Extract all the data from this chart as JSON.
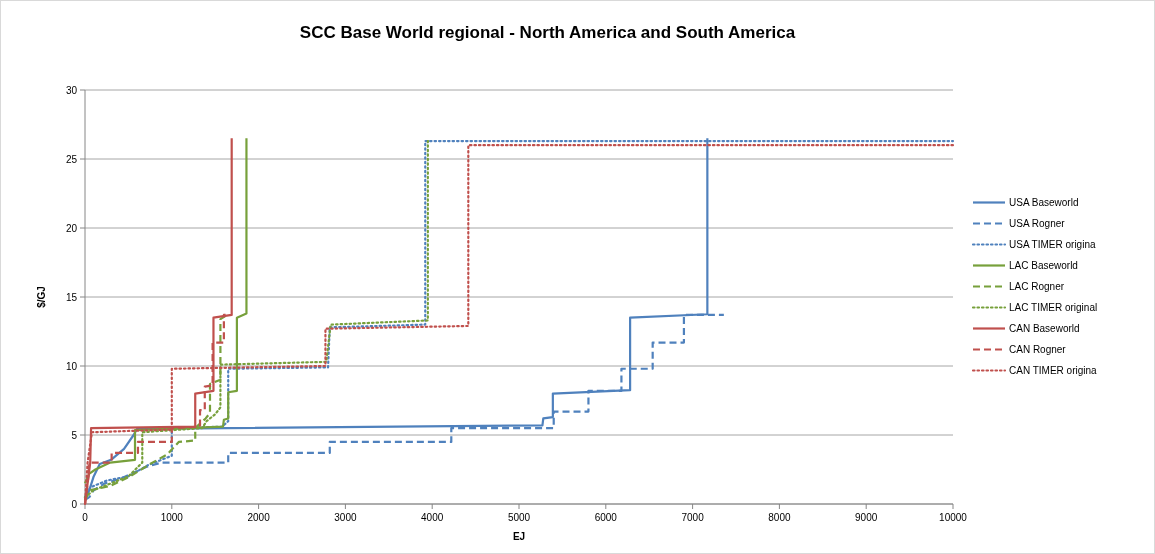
{
  "chart_data": {
    "type": "line",
    "title": "SCC Base World regional - North America and South America",
    "xlabel": "EJ",
    "ylabel": "$/GJ",
    "xlim": [
      0,
      10000
    ],
    "ylim": [
      0,
      30
    ],
    "xticks": [
      0,
      1000,
      2000,
      3000,
      4000,
      5000,
      6000,
      7000,
      8000,
      9000,
      10000
    ],
    "yticks": [
      0,
      5,
      10,
      15,
      20,
      25,
      30
    ],
    "grid": "y",
    "legend": "right",
    "marker": "none",
    "series": [
      {
        "name": "USA Baseworld",
        "color": "#4f81bd",
        "line_style": "solid",
        "x": [
          0,
          50,
          100,
          170,
          300,
          450,
          560,
          600,
          5270,
          5280,
          5390,
          5390,
          6280,
          6280,
          7170,
          7170
        ],
        "values": [
          0.4,
          1.0,
          2.0,
          2.9,
          3.2,
          4.0,
          5.0,
          5.45,
          5.7,
          6.2,
          6.3,
          8.0,
          8.25,
          13.5,
          13.75,
          26.5
        ]
      },
      {
        "name": "USA Rogner",
        "color": "#4f81bd",
        "line_style": "dashed",
        "x": [
          0,
          50,
          100,
          230,
          400,
          710,
          880,
          1650,
          1650,
          2820,
          2820,
          4220,
          4220,
          5400,
          5400,
          5800,
          5800,
          6180,
          6180,
          6540,
          6540,
          6900,
          6900,
          7360
        ],
        "values": [
          0.3,
          0.5,
          1.0,
          1.5,
          1.8,
          2.7,
          3.0,
          3.0,
          3.7,
          3.7,
          4.5,
          4.5,
          5.5,
          5.5,
          6.7,
          6.7,
          8.2,
          8.2,
          9.8,
          9.8,
          11.7,
          11.7,
          13.7,
          13.7
        ]
      },
      {
        "name": "USA TIMER origina",
        "color": "#4f81bd",
        "line_style": "dotted",
        "x": [
          0,
          60,
          250,
          500,
          720,
          1000,
          1000,
          1580,
          1650,
          1650,
          2800,
          2820,
          3920,
          3920,
          10000
        ],
        "values": [
          0.5,
          1.2,
          1.7,
          2.0,
          2.8,
          3.5,
          5.5,
          5.6,
          6.0,
          9.8,
          9.9,
          12.8,
          13.0,
          26.3,
          26.3
        ]
      },
      {
        "name": "LAC Baseworld",
        "color": "#77a03b",
        "line_style": "solid",
        "x": [
          0,
          50,
          120,
          290,
          576,
          576,
          1590,
          1600,
          1650,
          1650,
          1750,
          1750,
          1860,
          1860
        ],
        "values": [
          1.5,
          2.2,
          2.5,
          3.0,
          3.2,
          5.35,
          5.6,
          6.1,
          6.2,
          8.1,
          8.2,
          13.5,
          13.8,
          26.5
        ]
      },
      {
        "name": "LAC Rogner",
        "color": "#77a03b",
        "line_style": "dashed",
        "x": [
          0,
          60,
          290,
          520,
          750,
          950,
          1080,
          1270,
          1270,
          1390,
          1440,
          1440,
          1560,
          1560,
          1640
        ],
        "values": [
          0.3,
          1.0,
          1.3,
          2.0,
          2.9,
          3.6,
          4.5,
          4.6,
          5.5,
          6.2,
          6.6,
          8.7,
          9.0,
          13.4,
          13.7
        ]
      },
      {
        "name": "LAC TIMER original",
        "color": "#77a03b",
        "line_style": "dotted",
        "x": [
          0,
          100,
          300,
          500,
          660,
          660,
          1350,
          1400,
          1500,
          1560,
          1560,
          2780,
          2830,
          3950,
          3950,
          3970
        ],
        "values": [
          0.5,
          1.0,
          1.5,
          2.0,
          3.0,
          5.2,
          5.5,
          6.0,
          6.5,
          7.0,
          10.1,
          10.3,
          13.0,
          13.3,
          26.3,
          26.3
        ]
      },
      {
        "name": "CAN Baseworld",
        "color": "#c0504d",
        "line_style": "solid",
        "x": [
          0,
          30,
          60,
          70,
          1270,
          1270,
          1480,
          1480,
          1690,
          1690
        ],
        "values": [
          0,
          1.5,
          3.0,
          5.5,
          5.6,
          8.0,
          8.2,
          13.5,
          13.7,
          26.5
        ]
      },
      {
        "name": "CAN Rogner",
        "color": "#c0504d",
        "line_style": "dashed",
        "x": [
          0,
          40,
          50,
          307,
          307,
          610,
          610,
          1000,
          1000,
          1325,
          1325,
          1380,
          1380,
          1470,
          1470,
          1600,
          1600,
          1620
        ],
        "values": [
          0,
          2.0,
          3.0,
          3.0,
          3.7,
          3.7,
          4.5,
          4.5,
          5.5,
          5.6,
          6.8,
          6.8,
          8.5,
          8.6,
          11.7,
          11.7,
          13.7,
          13.7
        ]
      },
      {
        "name": "CAN TIMER origina",
        "color": "#c0504d",
        "line_style": "dotted",
        "x": [
          0,
          30,
          80,
          1000,
          1000,
          2770,
          2770,
          4416,
          4416,
          10000
        ],
        "values": [
          0,
          3.0,
          5.2,
          5.4,
          9.8,
          10.0,
          12.7,
          12.9,
          26.0,
          26.0
        ]
      }
    ]
  }
}
